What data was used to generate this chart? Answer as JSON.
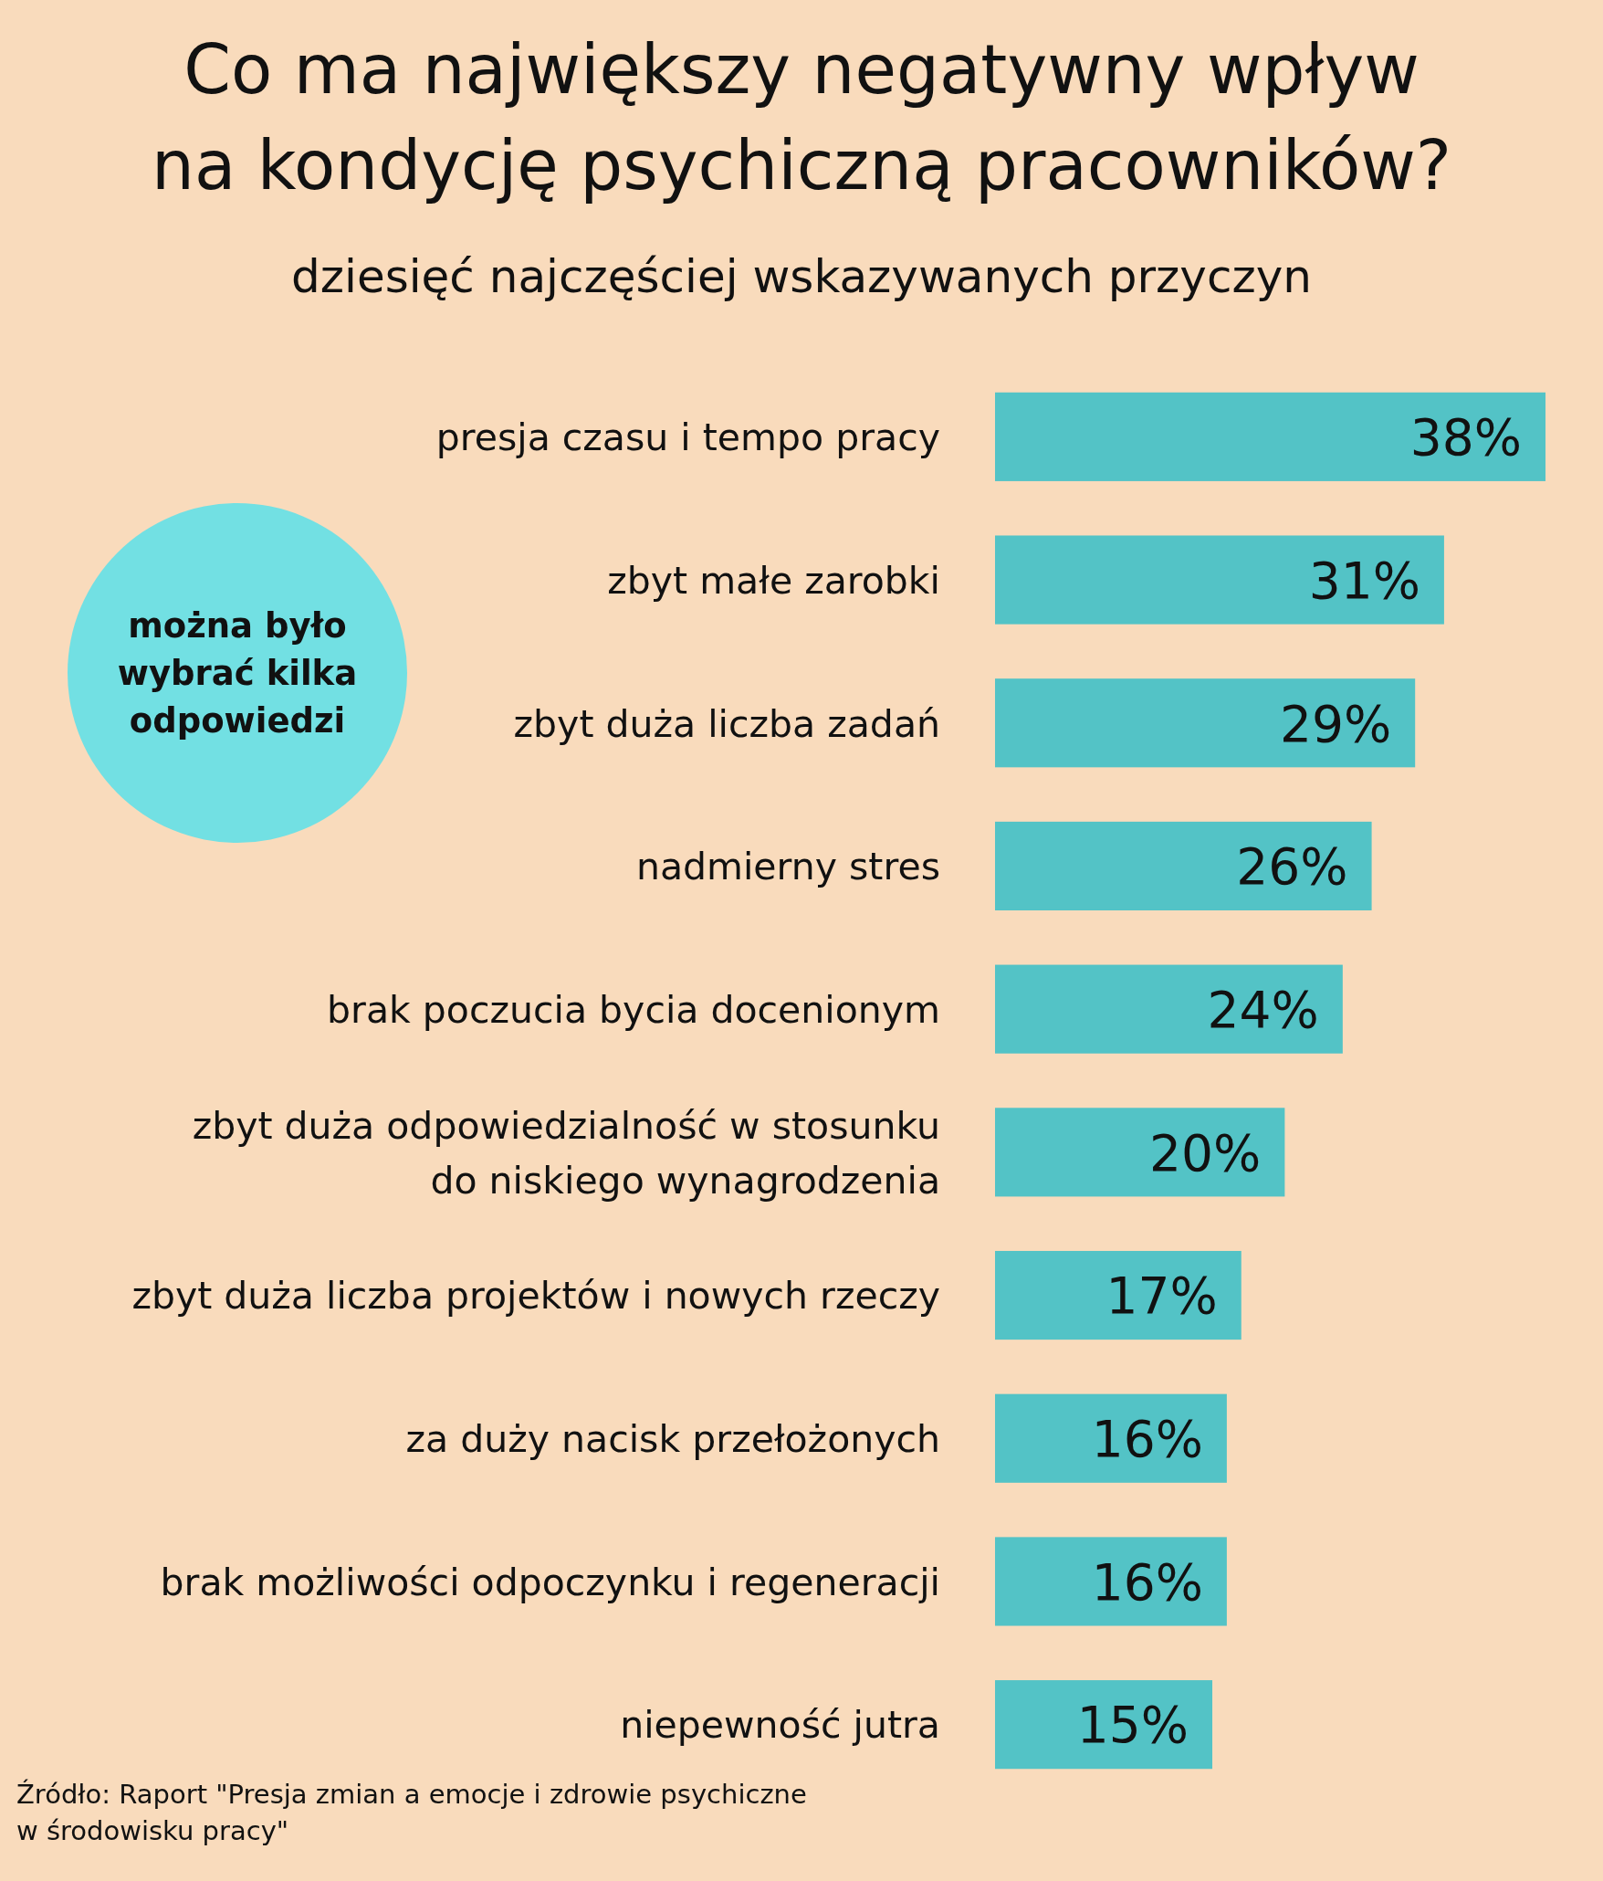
{
  "chart_data": {
    "type": "bar",
    "orientation": "horizontal",
    "title": "Co ma największy negatywny wpływ\nna kondycję psychiczną pracowników?",
    "subtitle": "dziesięć najczęściej wskazywanych przyczyn",
    "categories": [
      "presja czasu i tempo pracy",
      "zbyt małe zarobki",
      "zbyt duża liczba zadań",
      "nadmierny stres",
      "brak poczucia bycia docenionym",
      "zbyt duża odpowiedzialność w stosunku\ndo niskiego wynagrodzenia",
      "zbyt duża liczba projektów i nowych rzeczy",
      "za duży nacisk przełożonych",
      "brak możliwości odpoczynku i regeneracji",
      "niepewność jutra"
    ],
    "values": [
      38,
      31,
      29,
      26,
      24,
      20,
      17,
      16,
      16,
      15
    ],
    "value_labels": [
      "38%",
      "31%",
      "29%",
      "26%",
      "24%",
      "20%",
      "17%",
      "16%",
      "16%",
      "15%"
    ],
    "color": "#53c3c6",
    "annotations": [
      "można było\nwybrać kilka\nodpowiedzi",
      "Źródło: Raport \"Presja zmian a emocje i zdrowie psychiczne\nw środowisku pracy\""
    ]
  }
}
